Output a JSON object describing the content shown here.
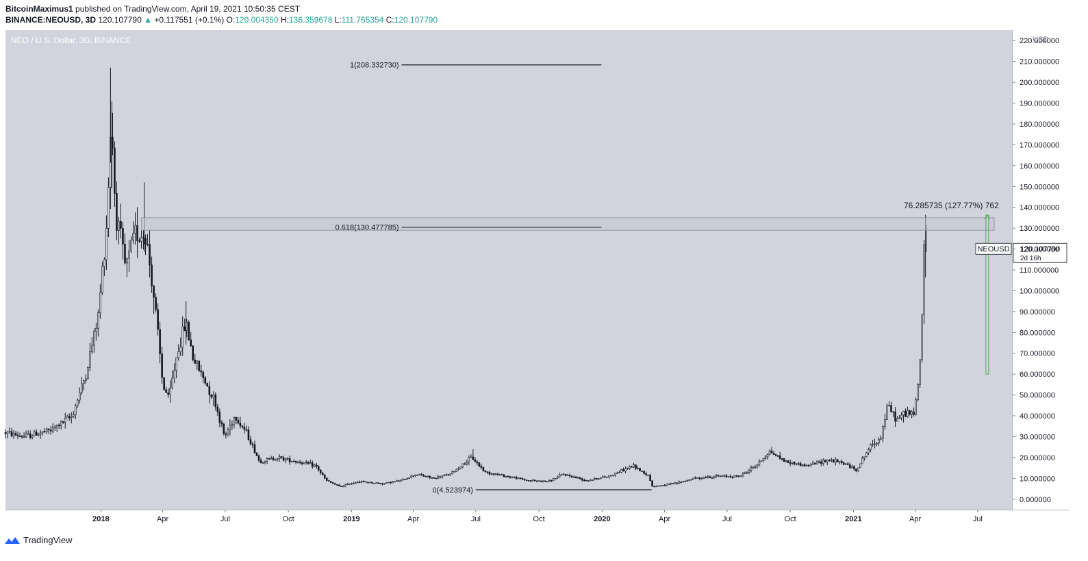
{
  "header": {
    "author": "BitcoinMaximus1",
    "published_text": "published on TradingView.com, April 19, 2021 10:50:35 CEST",
    "symbol": "BINANCE:NEOUSD, 3D",
    "last": "120.107790",
    "change": "+0.117551 (+0.1%)",
    "o_label": "O:",
    "o_value": "120.004350",
    "h_label": "H:",
    "h_value": "136.359678",
    "l_label": "L:",
    "l_value": "111.765354",
    "c_label": "C:",
    "c_value": "120.107790"
  },
  "footer": {
    "brand": "TradingView",
    "icon": "tradingview-logo-icon"
  },
  "colors": {
    "plot_bg": "#d1d4dc",
    "candle": "#131722",
    "measure": "#4caf50",
    "zone": "#c3c6ce"
  },
  "chart_data": {
    "type": "candlestick",
    "title": "NEO / U.S. Dollar, 3D, BINANCE",
    "y_unit": "USD",
    "ylim": [
      -5,
      225
    ],
    "xlim": [
      "2017-08-15",
      "2021-08-20"
    ],
    "y_ticks": [
      "0.000000",
      "10.000000",
      "20.000000",
      "30.000000",
      "40.000000",
      "50.000000",
      "60.000000",
      "70.000000",
      "80.000000",
      "90.000000",
      "100.000000",
      "110.000000",
      "120.000000",
      "130.000000",
      "140.000000",
      "150.000000",
      "160.000000",
      "170.000000",
      "180.000000",
      "190.000000",
      "200.000000",
      "210.000000",
      "220.000000"
    ],
    "x_ticks": [
      {
        "label": "2018",
        "date": "2018-01-01",
        "bold": true
      },
      {
        "label": "Apr",
        "date": "2018-04-01"
      },
      {
        "label": "Jul",
        "date": "2018-07-01"
      },
      {
        "label": "Oct",
        "date": "2018-10-01"
      },
      {
        "label": "2019",
        "date": "2019-01-01",
        "bold": true
      },
      {
        "label": "Apr",
        "date": "2019-04-01"
      },
      {
        "label": "Jul",
        "date": "2019-07-01"
      },
      {
        "label": "Oct",
        "date": "2019-10-01"
      },
      {
        "label": "2020",
        "date": "2020-01-01",
        "bold": true
      },
      {
        "label": "Apr",
        "date": "2020-04-01"
      },
      {
        "label": "Jul",
        "date": "2020-07-01"
      },
      {
        "label": "Oct",
        "date": "2020-10-01"
      },
      {
        "label": "2021",
        "date": "2021-01-01",
        "bold": true
      },
      {
        "label": "Apr",
        "date": "2021-04-01"
      },
      {
        "label": "Jul",
        "date": "2021-07-01"
      }
    ],
    "price_path": [
      [
        "2017-08-15",
        32
      ],
      [
        "2017-09-10",
        30
      ],
      [
        "2017-10-20",
        33
      ],
      [
        "2017-11-20",
        40
      ],
      [
        "2017-12-10",
        60
      ],
      [
        "2017-12-28",
        88
      ],
      [
        "2018-01-10",
        135
      ],
      [
        "2018-01-16",
        185
      ],
      [
        "2018-01-22",
        140
      ],
      [
        "2018-02-06",
        110
      ],
      [
        "2018-02-20",
        128
      ],
      [
        "2018-03-08",
        126
      ],
      [
        "2018-03-20",
        95
      ],
      [
        "2018-04-01",
        55
      ],
      [
        "2018-04-10",
        48
      ],
      [
        "2018-04-22",
        70
      ],
      [
        "2018-05-05",
        85
      ],
      [
        "2018-05-15",
        68
      ],
      [
        "2018-06-01",
        57
      ],
      [
        "2018-06-15",
        48
      ],
      [
        "2018-06-30",
        30
      ],
      [
        "2018-07-15",
        40
      ],
      [
        "2018-08-01",
        32
      ],
      [
        "2018-08-20",
        18
      ],
      [
        "2018-09-15",
        20
      ],
      [
        "2018-10-15",
        18
      ],
      [
        "2018-11-10",
        16
      ],
      [
        "2018-11-25",
        9
      ],
      [
        "2018-12-15",
        6
      ],
      [
        "2019-01-10",
        8.5
      ],
      [
        "2019-02-15",
        7.5
      ],
      [
        "2019-03-15",
        9
      ],
      [
        "2019-04-05",
        12
      ],
      [
        "2019-05-01",
        10
      ],
      [
        "2019-05-25",
        12
      ],
      [
        "2019-06-25",
        20
      ],
      [
        "2019-07-15",
        13
      ],
      [
        "2019-08-15",
        11
      ],
      [
        "2019-09-15",
        9
      ],
      [
        "2019-10-15",
        8.5
      ],
      [
        "2019-11-05",
        12
      ],
      [
        "2019-12-10",
        9
      ],
      [
        "2020-01-10",
        11
      ],
      [
        "2020-02-15",
        16
      ],
      [
        "2020-03-10",
        11
      ],
      [
        "2020-03-13",
        6
      ],
      [
        "2020-04-15",
        7.5
      ],
      [
        "2020-05-15",
        10
      ],
      [
        "2020-06-15",
        11
      ],
      [
        "2020-07-20",
        11
      ],
      [
        "2020-08-15",
        17
      ],
      [
        "2020-09-01",
        23
      ],
      [
        "2020-09-25",
        18
      ],
      [
        "2020-10-25",
        16
      ],
      [
        "2020-11-25",
        19
      ],
      [
        "2020-12-20",
        17
      ],
      [
        "2021-01-05",
        14
      ],
      [
        "2021-01-25",
        25
      ],
      [
        "2021-02-10",
        30
      ],
      [
        "2021-02-20",
        45
      ],
      [
        "2021-03-05",
        38
      ],
      [
        "2021-03-20",
        42
      ],
      [
        "2021-03-30",
        40
      ],
      [
        "2021-04-05",
        55
      ],
      [
        "2021-04-10",
        75
      ],
      [
        "2021-04-13",
        118
      ],
      [
        "2021-04-15",
        130
      ],
      [
        "2021-04-18",
        120
      ]
    ],
    "fib_levels": [
      {
        "label": "1(208.332730)",
        "value": 208.33273,
        "from": "2019-03-15",
        "to": "2019-12-31"
      },
      {
        "label": "0.618(130.477785)",
        "value": 130.477785,
        "from": "2019-03-15",
        "to": "2019-12-31"
      },
      {
        "label": "0(4.523974)",
        "value": 4.523974,
        "from": "2019-07-01",
        "to": "2020-03-13"
      }
    ],
    "zone": {
      "from": "2018-03-01",
      "to": "2021-07-25",
      "low": 129,
      "high": 135
    },
    "measure": {
      "date": "2021-07-15",
      "from": 60,
      "to": 136.3,
      "label": "76.285735 (127.77%) 762"
    },
    "price_tag": {
      "symbol": "NEOUSD",
      "value": "120.107790",
      "countdown": "2d 16h",
      "price": 120.10779
    }
  }
}
